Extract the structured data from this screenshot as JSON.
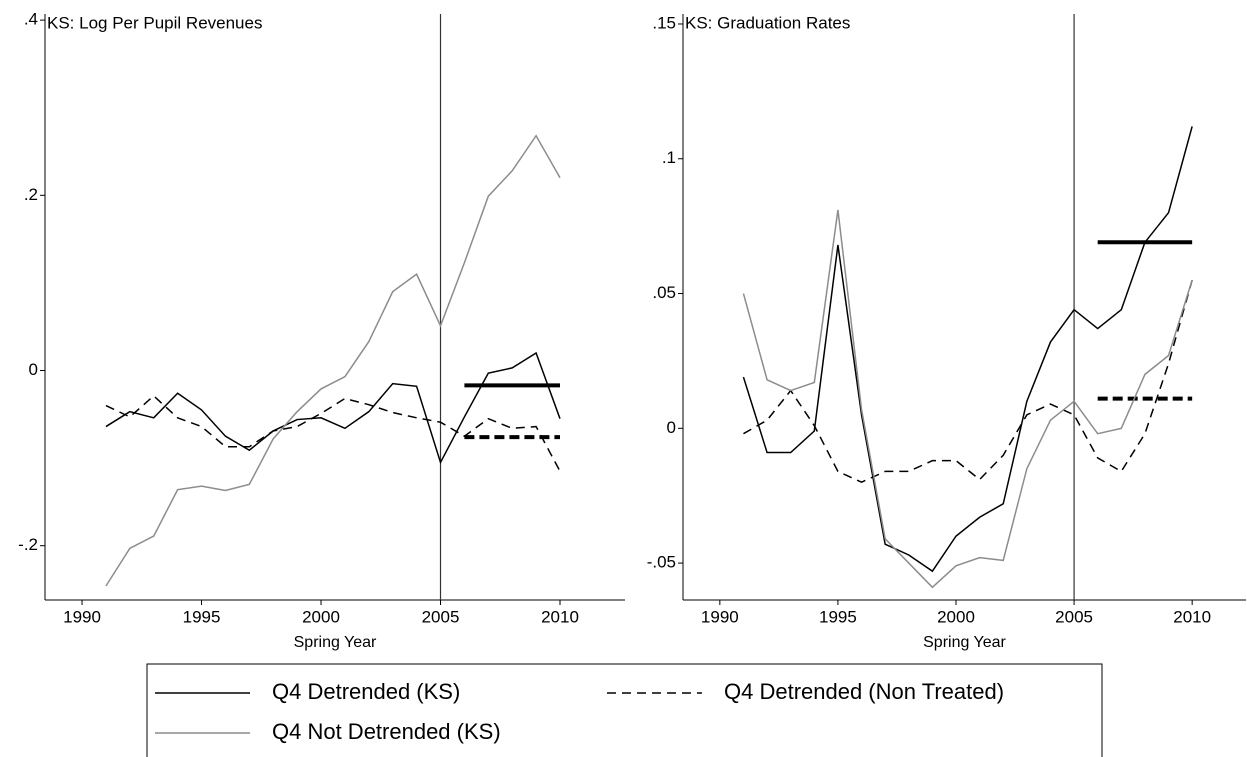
{
  "chart_data": [
    {
      "type": "line",
      "title": "KS: Log Per Pupil Revenues",
      "x_label": "Spring Year",
      "x": [
        1991,
        1992,
        1993,
        1994,
        1995,
        1996,
        1997,
        1998,
        1999,
        2000,
        2001,
        2002,
        2003,
        2004,
        2005,
        2006,
        2007,
        2008,
        2009,
        2010
      ],
      "xlim": [
        1988.45,
        2012.72
      ],
      "xticks": [
        1990,
        1995,
        2000,
        2005,
        2010
      ],
      "ylim": [
        -0.262,
        0.407
      ],
      "yticks": [
        {
          "value": -0.2,
          "label": "-.2"
        },
        0,
        {
          "value": 0.2,
          "label": ".2"
        },
        {
          "value": 0.4,
          "label": ".4"
        }
      ],
      "vline": 2005,
      "post_period": [
        2006,
        2010
      ],
      "series": [
        {
          "name": "Q4 Detrended (KS)",
          "color": "#000000",
          "dash": false,
          "post_mean": -0.017,
          "values": [
            -0.064,
            -0.047,
            -0.054,
            -0.026,
            -0.045,
            -0.075,
            -0.091,
            -0.069,
            -0.056,
            -0.054,
            -0.066,
            -0.047,
            -0.015,
            -0.018,
            -0.105,
            -0.053,
            -0.003,
            0.003,
            0.02,
            -0.055
          ]
        },
        {
          "name": "Q4 Detrended (Non Treated)",
          "color": "#000000",
          "dash": true,
          "post_mean": -0.076,
          "values": [
            -0.04,
            -0.053,
            -0.029,
            -0.054,
            -0.064,
            -0.087,
            -0.087,
            -0.069,
            -0.064,
            -0.049,
            -0.032,
            -0.039,
            -0.048,
            -0.054,
            -0.059,
            -0.075,
            -0.055,
            -0.066,
            -0.064,
            -0.115
          ]
        },
        {
          "name": "Q4 Not Detrended (KS)",
          "color": "#8c8c8c",
          "dash": false,
          "values": [
            -0.246,
            -0.203,
            -0.189,
            -0.136,
            -0.132,
            -0.137,
            -0.13,
            -0.078,
            -0.047,
            -0.021,
            -0.007,
            0.033,
            0.09,
            0.11,
            0.051,
            0.123,
            0.199,
            0.228,
            0.268,
            0.22
          ]
        }
      ]
    },
    {
      "type": "line",
      "title": "KS: Graduation Rates",
      "x_label": "Spring Year",
      "x": [
        1991,
        1992,
        1993,
        1994,
        1995,
        1996,
        1997,
        1998,
        1999,
        2000,
        2001,
        2002,
        2003,
        2004,
        2005,
        2006,
        2007,
        2008,
        2009,
        2010
      ],
      "xlim": [
        1988.44,
        2012.28
      ],
      "xticks": [
        1990,
        1995,
        2000,
        2005,
        2010
      ],
      "ylim": [
        -0.0637,
        0.1537
      ],
      "yticks": [
        {
          "value": -0.05,
          "label": "-.05"
        },
        0,
        {
          "value": 0.05,
          "label": ".05"
        },
        {
          "value": 0.1,
          "label": ".1"
        },
        {
          "value": 0.15,
          "label": ".15"
        }
      ],
      "vline": 2005,
      "post_period": [
        2006,
        2010
      ],
      "series": [
        {
          "color": "#000000",
          "dash": false,
          "post_mean": 0.069,
          "values": [
            0.019,
            -0.009,
            -0.009,
            -0.001,
            0.068,
            0.005,
            -0.043,
            -0.047,
            -0.053,
            -0.04,
            -0.033,
            -0.028,
            0.01,
            0.032,
            0.044,
            0.037,
            0.044,
            0.069,
            0.08,
            0.112
          ]
        },
        {
          "color": "#000000",
          "dash": true,
          "post_mean": 0.011,
          "values": [
            -0.002,
            0.003,
            0.014,
            0.001,
            -0.016,
            -0.02,
            -0.016,
            -0.016,
            -0.012,
            -0.012,
            -0.019,
            -0.01,
            0.005,
            0.009,
            0.005,
            -0.011,
            -0.016,
            -0.002,
            0.024,
            0.055
          ]
        },
        {
          "color": "#8c8c8c",
          "dash": false,
          "values": [
            0.05,
            0.018,
            0.014,
            0.017,
            0.081,
            0.007,
            -0.041,
            -0.05,
            -0.059,
            -0.051,
            -0.048,
            -0.049,
            -0.015,
            0.003,
            0.01,
            -0.002,
            0.0,
            0.02,
            0.027,
            0.055
          ]
        }
      ]
    }
  ]
}
